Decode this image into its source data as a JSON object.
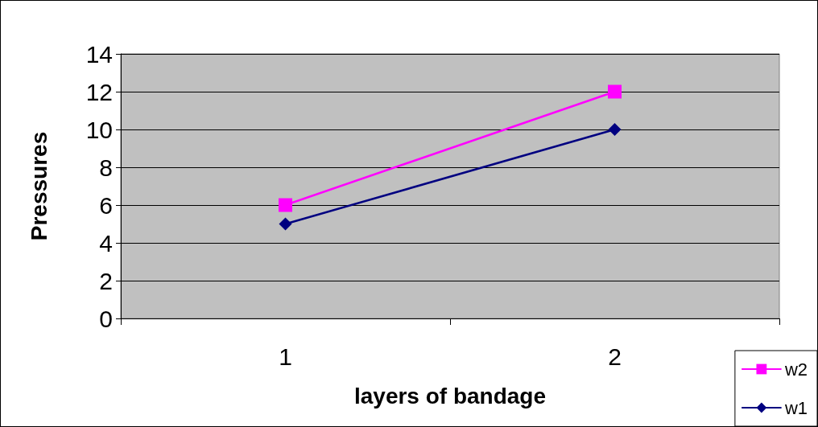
{
  "chart_data": {
    "type": "line",
    "xlabel": "layers of bandage",
    "ylabel": "Pressures",
    "categories": [
      "1",
      "2"
    ],
    "series": [
      {
        "name": "w2",
        "color": "#ff00ff",
        "values": [
          6,
          12
        ],
        "marker": "square"
      },
      {
        "name": "w1",
        "color": "#000080",
        "values": [
          5,
          10
        ],
        "marker": "diamond"
      }
    ],
    "ylim": [
      0,
      14
    ],
    "yticks": [
      0,
      2,
      4,
      6,
      8,
      10,
      12,
      14
    ],
    "grid": "y",
    "legend": "bottom right",
    "line_style": "solid"
  }
}
